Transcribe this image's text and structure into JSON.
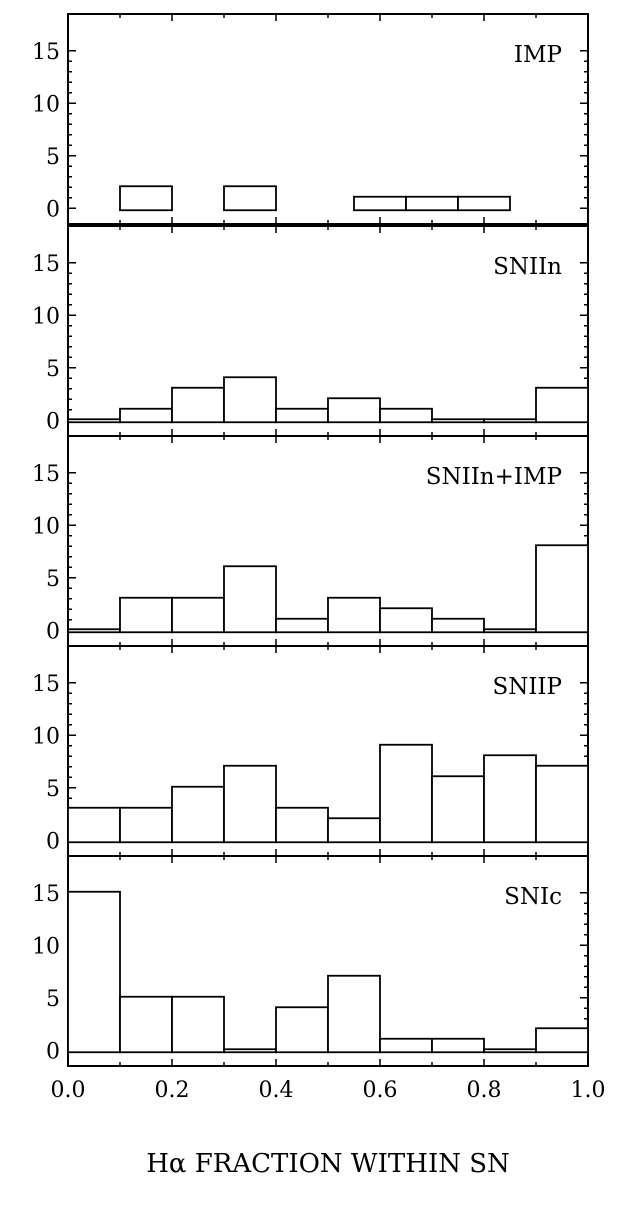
{
  "chart_data": {
    "type": "bar",
    "xlabel": "Hα FRACTION WITHIN SN",
    "xlim": [
      0.0,
      1.0
    ],
    "ylim": [
      -1.5,
      18.5
    ],
    "bin_edges": [
      0.0,
      0.1,
      0.2,
      0.3,
      0.4,
      0.5,
      0.6,
      0.7,
      0.8,
      0.9,
      1.0
    ],
    "x_ticks": [
      "0.0",
      "0.2",
      "0.4",
      "0.6",
      "0.8",
      "1.0"
    ],
    "y_ticks": [
      "0",
      "5",
      "10",
      "15"
    ],
    "panels": [
      {
        "name": "IMP",
        "bins": [
          {
            "from": 0.1,
            "to": 0.2,
            "value": 2
          },
          {
            "from": 0.3,
            "to": 0.4,
            "value": 2
          },
          {
            "from": 0.55,
            "to": 0.65,
            "value": 1
          },
          {
            "from": 0.65,
            "to": 0.75,
            "value": 1
          },
          {
            "from": 0.75,
            "to": 0.85,
            "value": 1
          }
        ]
      },
      {
        "name": "SNIIn",
        "bins": [
          {
            "from": 0.0,
            "to": 0.1,
            "value": 0
          },
          {
            "from": 0.1,
            "to": 0.2,
            "value": 1
          },
          {
            "from": 0.2,
            "to": 0.3,
            "value": 3
          },
          {
            "from": 0.3,
            "to": 0.4,
            "value": 4
          },
          {
            "from": 0.4,
            "to": 0.5,
            "value": 1
          },
          {
            "from": 0.5,
            "to": 0.6,
            "value": 2
          },
          {
            "from": 0.6,
            "to": 0.7,
            "value": 1
          },
          {
            "from": 0.7,
            "to": 0.8,
            "value": 0
          },
          {
            "from": 0.8,
            "to": 0.9,
            "value": 0
          },
          {
            "from": 0.9,
            "to": 1.0,
            "value": 3
          }
        ]
      },
      {
        "name": "SNIIn+IMP",
        "bins": [
          {
            "from": 0.0,
            "to": 0.1,
            "value": 0
          },
          {
            "from": 0.1,
            "to": 0.2,
            "value": 3
          },
          {
            "from": 0.2,
            "to": 0.3,
            "value": 3
          },
          {
            "from": 0.3,
            "to": 0.4,
            "value": 6
          },
          {
            "from": 0.4,
            "to": 0.5,
            "value": 1
          },
          {
            "from": 0.5,
            "to": 0.6,
            "value": 3
          },
          {
            "from": 0.6,
            "to": 0.7,
            "value": 2
          },
          {
            "from": 0.7,
            "to": 0.8,
            "value": 1
          },
          {
            "from": 0.8,
            "to": 0.9,
            "value": 0
          },
          {
            "from": 0.9,
            "to": 1.0,
            "value": 8
          }
        ]
      },
      {
        "name": "SNIIP",
        "bins": [
          {
            "from": 0.0,
            "to": 0.1,
            "value": 3
          },
          {
            "from": 0.1,
            "to": 0.2,
            "value": 3
          },
          {
            "from": 0.2,
            "to": 0.3,
            "value": 5
          },
          {
            "from": 0.3,
            "to": 0.4,
            "value": 7
          },
          {
            "from": 0.4,
            "to": 0.5,
            "value": 3
          },
          {
            "from": 0.5,
            "to": 0.6,
            "value": 2
          },
          {
            "from": 0.6,
            "to": 0.7,
            "value": 9
          },
          {
            "from": 0.7,
            "to": 0.8,
            "value": 6
          },
          {
            "from": 0.8,
            "to": 0.9,
            "value": 8
          },
          {
            "from": 0.9,
            "to": 1.0,
            "value": 7
          }
        ]
      },
      {
        "name": "SNIc",
        "bins": [
          {
            "from": 0.0,
            "to": 0.1,
            "value": 15
          },
          {
            "from": 0.1,
            "to": 0.2,
            "value": 5
          },
          {
            "from": 0.2,
            "to": 0.3,
            "value": 5
          },
          {
            "from": 0.3,
            "to": 0.4,
            "value": 0
          },
          {
            "from": 0.4,
            "to": 0.5,
            "value": 4
          },
          {
            "from": 0.5,
            "to": 0.6,
            "value": 7
          },
          {
            "from": 0.6,
            "to": 0.7,
            "value": 1
          },
          {
            "from": 0.7,
            "to": 0.8,
            "value": 1
          },
          {
            "from": 0.8,
            "to": 0.9,
            "value": 0
          },
          {
            "from": 0.9,
            "to": 1.0,
            "value": 2
          }
        ]
      }
    ]
  }
}
